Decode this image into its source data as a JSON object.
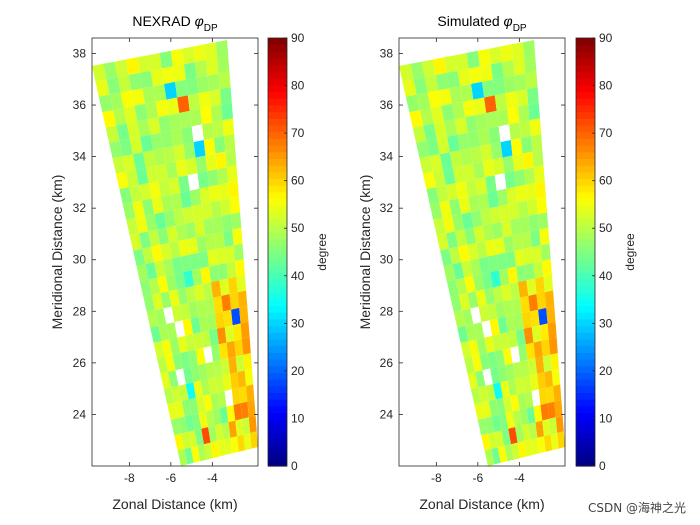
{
  "chart_data": [
    {
      "type": "heatmap",
      "title": "NEXRAD",
      "title_symbol": "φ",
      "title_subscript": "DP",
      "xlabel": "Zonal Distance (km)",
      "ylabel": "Meridional Distance (km)",
      "xlim": [
        -9.8,
        -1.8
      ],
      "ylim": [
        22,
        38.6
      ],
      "xticks": [
        "-8",
        "-6",
        "-4"
      ],
      "yticks": [
        "24",
        "26",
        "28",
        "30",
        "32",
        "34",
        "36",
        "38"
      ],
      "x_tick_values": [
        -8,
        -6,
        -4
      ],
      "y_tick_values": [
        24,
        26,
        28,
        30,
        32,
        34,
        36,
        38
      ],
      "colorbar": {
        "label": "degree",
        "ticks": [
          "0",
          "10",
          "20",
          "30",
          "40",
          "50",
          "60",
          "70",
          "80",
          "90"
        ],
        "tick_values": [
          0,
          10,
          20,
          30,
          40,
          50,
          60,
          70,
          80,
          90
        ],
        "range": [
          0,
          90
        ],
        "colormap": "jet"
      }
    },
    {
      "type": "heatmap",
      "title": "Simulated",
      "title_symbol": "φ",
      "title_subscript": "DP",
      "xlabel": "Zonal Distance (km)",
      "ylabel": "Meridional Distance (km)",
      "xlim": [
        -9.8,
        -1.8
      ],
      "ylim": [
        22,
        38.6
      ],
      "xticks": [
        "-8",
        "-6",
        "-4"
      ],
      "yticks": [
        "24",
        "26",
        "28",
        "30",
        "32",
        "34",
        "36",
        "38"
      ],
      "x_tick_values": [
        -8,
        -6,
        -4
      ],
      "y_tick_values": [
        24,
        26,
        28,
        30,
        32,
        34,
        36,
        38
      ],
      "colorbar": {
        "label": "degree",
        "ticks": [
          "0",
          "10",
          "20",
          "30",
          "40",
          "50",
          "60",
          "70",
          "80",
          "90"
        ],
        "tick_values": [
          0,
          10,
          20,
          30,
          40,
          50,
          60,
          70,
          80,
          90
        ],
        "range": [
          0,
          90
        ],
        "colormap": "jet"
      }
    }
  ],
  "watermark": "CSDN @海神之光"
}
